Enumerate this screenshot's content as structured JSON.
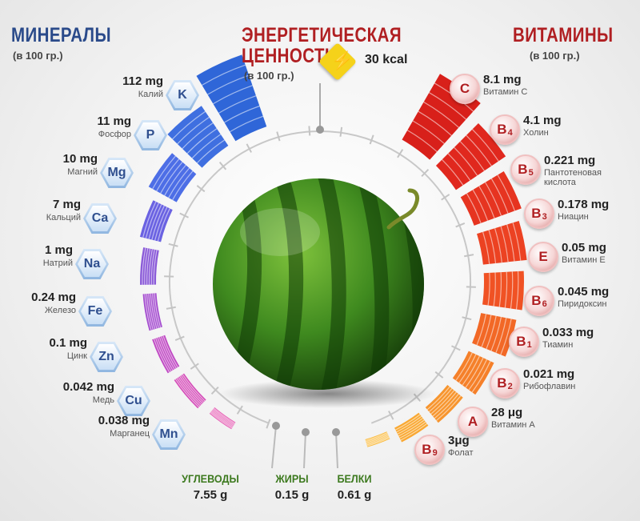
{
  "minerals": {
    "title": "МИНЕРАЛЫ",
    "subtitle": "(в 100 гр.)",
    "items": [
      {
        "symbol": "K",
        "amount": "112 mg",
        "name": "Калий"
      },
      {
        "symbol": "P",
        "amount": "11 mg",
        "name": "Фосфор"
      },
      {
        "symbol": "Mg",
        "amount": "10 mg",
        "name": "Магний"
      },
      {
        "symbol": "Ca",
        "amount": "7 mg",
        "name": "Кальций"
      },
      {
        "symbol": "Na",
        "amount": "1 mg",
        "name": "Натрий"
      },
      {
        "symbol": "Fe",
        "amount": "0.24 mg",
        "name": "Железо"
      },
      {
        "symbol": "Zn",
        "amount": "0.1 mg",
        "name": "Цинк"
      },
      {
        "symbol": "Cu",
        "amount": "0.042 mg",
        "name": "Медь"
      },
      {
        "symbol": "Mn",
        "amount": "0.038 mg",
        "name": "Марганец"
      }
    ]
  },
  "energy": {
    "title_line1": "ЭНЕРГЕТИЧЕСКАЯ",
    "title_line2": "ЦЕННОСТЬ",
    "subtitle": "(в 100 гр.)",
    "value": "30 kcal"
  },
  "vitamins": {
    "title": "ВИТАМИНЫ",
    "subtitle": "(в 100 гр.)",
    "items": [
      {
        "letter": "C",
        "sub": "",
        "amount": "8.1 mg",
        "name": "Витамин С"
      },
      {
        "letter": "B",
        "sub": "4",
        "amount": "4.1 mg",
        "name": "Холин"
      },
      {
        "letter": "B",
        "sub": "5",
        "amount": "0.221 mg",
        "name": "Пантотеновая кислота"
      },
      {
        "letter": "B",
        "sub": "3",
        "amount": "0.178 mg",
        "name": "Ниацин"
      },
      {
        "letter": "E",
        "sub": "",
        "amount": "0.05 mg",
        "name": "Витамин Е"
      },
      {
        "letter": "B",
        "sub": "6",
        "amount": "0.045 mg",
        "name": "Пиридоксин"
      },
      {
        "letter": "B",
        "sub": "1",
        "amount": "0.033 mg",
        "name": "Тиамин"
      },
      {
        "letter": "B",
        "sub": "2",
        "amount": "0.021 mg",
        "name": "Рибофлавин"
      },
      {
        "letter": "A",
        "sub": "",
        "amount": "28 μg",
        "name": "Витамин А"
      },
      {
        "letter": "B",
        "sub": "9",
        "amount": "3μg",
        "name": "Фолат"
      }
    ]
  },
  "macros": [
    {
      "label": "УГЛЕВОДЫ",
      "value": "7.55 g"
    },
    {
      "label": "ЖИРЫ",
      "value": "0.15 g"
    },
    {
      "label": "БЕЛКИ",
      "value": "0.61 g"
    }
  ],
  "colors": {
    "minerals_title": "#2a4a8a",
    "vitamins_title": "#b01f22",
    "energy_title": "#b01f22",
    "macros_label": "#3d7a1f",
    "energy_badge": "#f5d21a"
  }
}
